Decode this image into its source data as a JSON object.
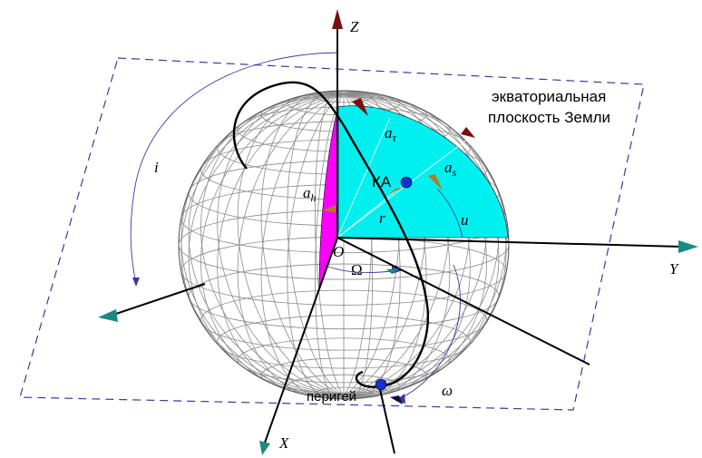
{
  "labels": {
    "axis_z": "Z",
    "axis_y": "Y",
    "axis_x": "X",
    "origin": "O",
    "plane_line1": "экваториальная",
    "plane_line2": "плоскость Земли",
    "inclination": "i",
    "a_tau_base": "a",
    "a_tau_sub": "τ",
    "a_s_base": "a",
    "a_s_sub": "s",
    "a_h_base": "a",
    "a_h_sub": "h",
    "spacecraft": "КА",
    "radius": "r",
    "arg_latitude": "u",
    "raan": "Ω",
    "perigee": "перигей",
    "arg_perigee": "ω"
  },
  "colors": {
    "cyan_sector": "#00f0f0",
    "magenta_sector": "#ff00ff",
    "plane_dash": "#3a3aa0",
    "arc_blue": "#3a3aa0",
    "wire": "#8a8a8a",
    "orbit": "#000000",
    "point_blue": "#1530d0",
    "cone_dark_red": "#7a1010",
    "cone_teal": "#1a8a80",
    "cone_tan": "#b08020",
    "cone_navy": "#101040"
  }
}
